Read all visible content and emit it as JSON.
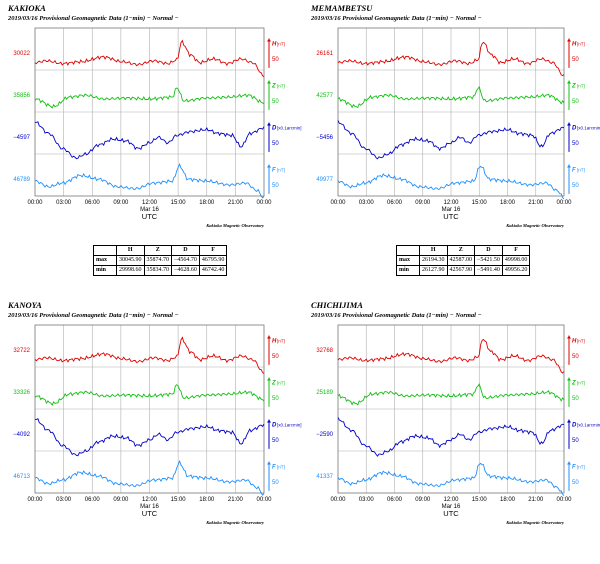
{
  "colors": {
    "H": "#e00000",
    "Z": "#10c010",
    "D": "#0000c8",
    "F": "#1e90ff",
    "grid": "#b0b0b0",
    "text": "#000000"
  },
  "common": {
    "subtitle": "2019/03/16  Provisional Geomagnetic Data (1−min)  − Normal −",
    "utc_label": "UTC",
    "date_label": "Mar 16",
    "observatory": "Kakioka Magnetic Observatory",
    "time_ticks": [
      "00:00",
      "03:00",
      "06:00",
      "09:00",
      "12:00",
      "15:00",
      "18:00",
      "21:00",
      "00:00"
    ],
    "scale_label": "50",
    "unit_nt": "[nT]",
    "unit_d": "[x0.1arcmin]",
    "table_headers": [
      "H",
      "Z",
      "D",
      "F"
    ],
    "row_max_label": "max",
    "row_min_label": "min"
  },
  "chart_data": [
    {
      "type": "line",
      "station": "KAKIOKA",
      "title": "KAKIOKA",
      "xlabel": "UTC",
      "x_range_hours": [
        0,
        24
      ],
      "series": [
        {
          "name": "H",
          "base_label": "30022"
        },
        {
          "name": "Z",
          "base_label": "35856"
        },
        {
          "name": "D",
          "base_label": "−4597"
        },
        {
          "name": "F",
          "base_label": "46789"
        }
      ],
      "table": {
        "max": [
          "30045.90",
          "35874.70",
          "−4564.70",
          "46795.90"
        ],
        "min": [
          "29998.60",
          "35834.70",
          "−4628.60",
          "46742.40"
        ]
      }
    },
    {
      "type": "line",
      "station": "MEMAMBETSU",
      "title": "MEMAMBETSU",
      "xlabel": "UTC",
      "x_range_hours": [
        0,
        24
      ],
      "series": [
        {
          "name": "H",
          "base_label": "26161"
        },
        {
          "name": "Z",
          "base_label": "42577"
        },
        {
          "name": "D",
          "base_label": "−5456"
        },
        {
          "name": "F",
          "base_label": "49977"
        }
      ],
      "table": {
        "max": [
          "26194.30",
          "42587.00",
          "−5421.50",
          "49998.00"
        ],
        "min": [
          "26127.90",
          "42567.90",
          "−5491.40",
          "49956.20"
        ]
      }
    },
    {
      "type": "line",
      "station": "KANOYA",
      "title": "KANOYA",
      "xlabel": "UTC",
      "x_range_hours": [
        0,
        24
      ],
      "series": [
        {
          "name": "H",
          "base_label": "32722"
        },
        {
          "name": "Z",
          "base_label": "33326"
        },
        {
          "name": "D",
          "base_label": "−4092"
        },
        {
          "name": "F",
          "base_label": "46713"
        }
      ]
    },
    {
      "type": "line",
      "station": "CHICHIJIMA",
      "title": "CHICHIJIMA",
      "xlabel": "UTC",
      "x_range_hours": [
        0,
        24
      ],
      "series": [
        {
          "name": "H",
          "base_label": "32768"
        },
        {
          "name": "Z",
          "base_label": "25189"
        },
        {
          "name": "D",
          "base_label": "−2590"
        },
        {
          "name": "F",
          "base_label": "41337"
        }
      ]
    }
  ]
}
